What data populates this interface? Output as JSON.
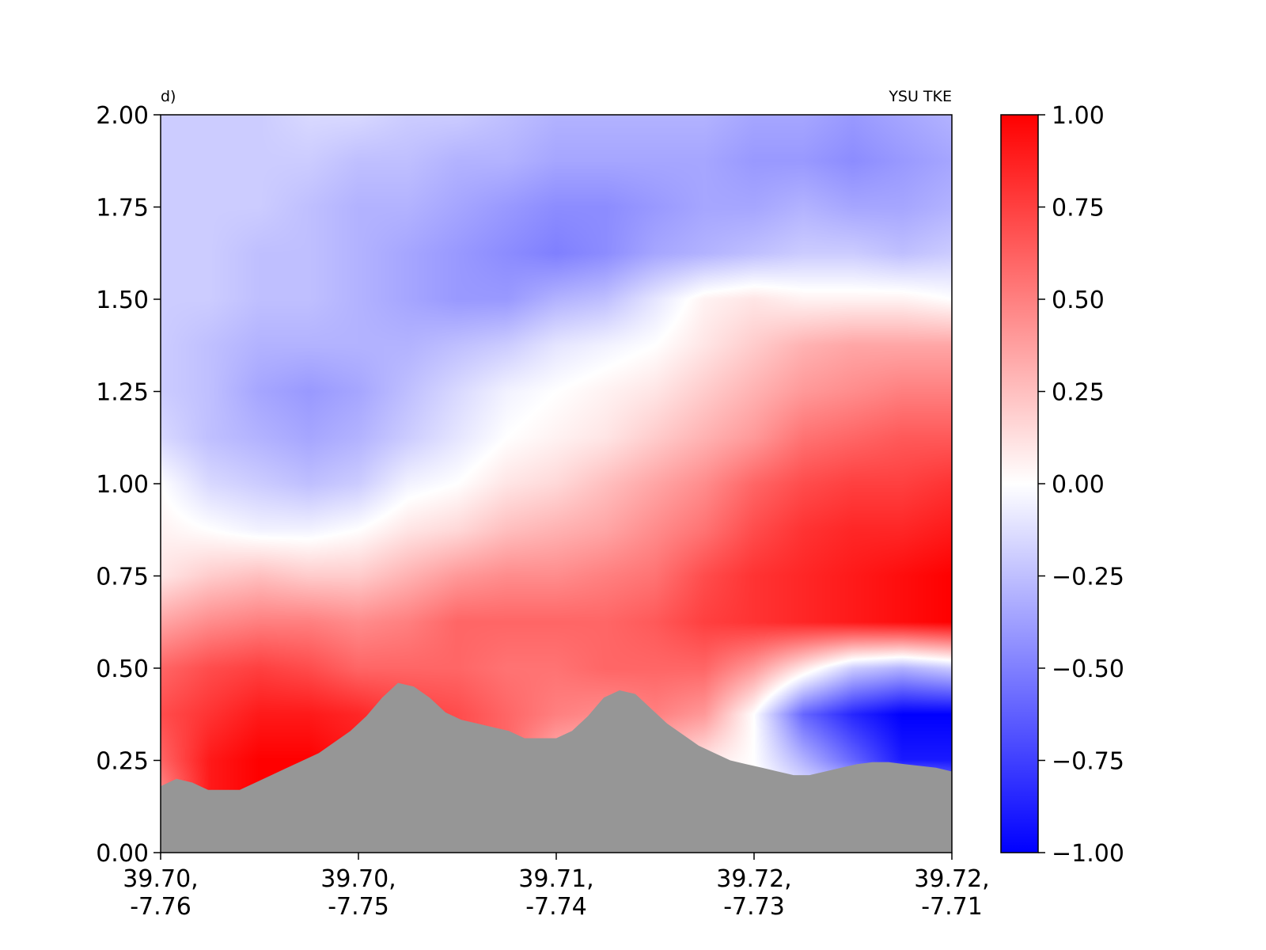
{
  "chart_data": {
    "type": "heatmap",
    "panel_label": "d)",
    "title": "YSU TKE",
    "x_ticks": [
      "39.70,\n-7.76",
      "39.70,\n-7.75",
      "39.71,\n-7.74",
      "39.72,\n-7.73",
      "39.72,\n-7.71"
    ],
    "ylim": [
      0,
      2.0
    ],
    "y_ticks": [
      "0.00",
      "0.25",
      "0.50",
      "0.75",
      "1.00",
      "1.25",
      "1.50",
      "1.75",
      "2.00"
    ],
    "y_tick_values": [
      0,
      0.25,
      0.5,
      0.75,
      1.0,
      1.25,
      1.5,
      1.75,
      2.0
    ],
    "colorbar": {
      "vmin": -1.0,
      "vmax": 1.0,
      "ticks": [
        "1.00",
        "0.75",
        "0.50",
        "0.25",
        "0.00",
        "−0.25",
        "−0.50",
        "−0.75",
        "−1.00"
      ],
      "tick_values": [
        1.0,
        0.75,
        0.5,
        0.25,
        0.0,
        -0.25,
        -0.5,
        -0.75,
        -1.0
      ],
      "colormap": "bwr",
      "colors": {
        "min": "#0000ff",
        "mid": "#ffffff",
        "max": "#ff0000"
      }
    },
    "terrain_color": "#969696",
    "x_positions": [
      0,
      0.0625,
      0.125,
      0.1875,
      0.25,
      0.3125,
      0.375,
      0.4375,
      0.5,
      0.5625,
      0.625,
      0.6875,
      0.75,
      0.8125,
      0.875,
      0.9375,
      1.0
    ],
    "heights": [
      0.0,
      0.125,
      0.25,
      0.375,
      0.5,
      0.625,
      0.75,
      0.875,
      1.0,
      1.125,
      1.25,
      1.375,
      1.5,
      1.625,
      1.75,
      1.875,
      2.0
    ],
    "values": [
      [
        0.5,
        0.9,
        1.0,
        0.95,
        0.9,
        0.8,
        0.75,
        0.7,
        0.5,
        0.4,
        0.3,
        0.2,
        0.1,
        -0.1,
        -0.3,
        0.1,
        0.1
      ],
      [
        0.4,
        0.9,
        1.0,
        1.0,
        0.9,
        0.8,
        0.75,
        0.6,
        0.4,
        0.3,
        0.25,
        0.15,
        0.05,
        0.0,
        0.0,
        0.2,
        -0.2
      ],
      [
        0.6,
        0.9,
        1.0,
        1.0,
        0.9,
        0.8,
        0.7,
        0.6,
        0.3,
        0.2,
        0.25,
        0.1,
        0.0,
        -0.3,
        -0.6,
        -0.9,
        -0.9
      ],
      [
        0.7,
        0.8,
        0.9,
        0.9,
        0.85,
        0.75,
        0.7,
        0.6,
        0.5,
        0.45,
        0.5,
        0.4,
        0.0,
        -0.6,
        -0.85,
        -1.0,
        -1.0
      ],
      [
        0.6,
        0.7,
        0.75,
        0.7,
        0.6,
        0.6,
        0.6,
        0.55,
        0.55,
        0.6,
        0.6,
        0.6,
        0.4,
        0.1,
        -0.2,
        -0.3,
        -0.2
      ],
      [
        0.35,
        0.45,
        0.5,
        0.5,
        0.45,
        0.5,
        0.6,
        0.6,
        0.6,
        0.6,
        0.65,
        0.75,
        0.8,
        0.85,
        0.9,
        0.95,
        1.0
      ],
      [
        0.1,
        0.2,
        0.25,
        0.2,
        0.2,
        0.3,
        0.4,
        0.45,
        0.45,
        0.5,
        0.55,
        0.7,
        0.8,
        0.85,
        0.9,
        0.95,
        1.0
      ],
      [
        0.05,
        0.0,
        -0.05,
        -0.05,
        0.0,
        0.1,
        0.15,
        0.25,
        0.3,
        0.35,
        0.45,
        0.55,
        0.7,
        0.8,
        0.85,
        0.85,
        0.9
      ],
      [
        0.0,
        -0.15,
        -0.2,
        -0.25,
        -0.2,
        -0.05,
        0.0,
        0.1,
        0.15,
        0.25,
        0.35,
        0.45,
        0.6,
        0.7,
        0.75,
        0.75,
        0.8
      ],
      [
        -0.15,
        -0.25,
        -0.3,
        -0.35,
        -0.3,
        -0.2,
        -0.1,
        0.0,
        0.05,
        0.1,
        0.2,
        0.3,
        0.4,
        0.55,
        0.6,
        0.65,
        0.65
      ],
      [
        -0.2,
        -0.25,
        -0.35,
        -0.4,
        -0.35,
        -0.25,
        -0.15,
        -0.05,
        0.0,
        0.05,
        0.1,
        0.2,
        0.3,
        0.4,
        0.45,
        0.5,
        0.5
      ],
      [
        -0.2,
        -0.25,
        -0.3,
        -0.3,
        -0.3,
        -0.3,
        -0.25,
        -0.2,
        -0.1,
        -0.05,
        0.0,
        0.1,
        0.2,
        0.3,
        0.35,
        0.35,
        0.35
      ],
      [
        -0.2,
        -0.2,
        -0.25,
        -0.25,
        -0.3,
        -0.35,
        -0.4,
        -0.4,
        -0.3,
        -0.25,
        -0.1,
        0.05,
        0.1,
        0.05,
        0.05,
        0.05,
        0.0
      ],
      [
        -0.2,
        -0.2,
        -0.25,
        -0.25,
        -0.3,
        -0.35,
        -0.4,
        -0.45,
        -0.5,
        -0.45,
        -0.35,
        -0.3,
        -0.25,
        -0.2,
        -0.2,
        -0.25,
        -0.2
      ],
      [
        -0.2,
        -0.2,
        -0.2,
        -0.25,
        -0.3,
        -0.3,
        -0.35,
        -0.4,
        -0.45,
        -0.45,
        -0.4,
        -0.35,
        -0.35,
        -0.3,
        -0.35,
        -0.35,
        -0.3
      ],
      [
        -0.2,
        -0.2,
        -0.2,
        -0.2,
        -0.25,
        -0.25,
        -0.3,
        -0.3,
        -0.35,
        -0.35,
        -0.35,
        -0.35,
        -0.4,
        -0.4,
        -0.45,
        -0.4,
        -0.35
      ],
      [
        -0.2,
        -0.2,
        -0.2,
        -0.15,
        -0.15,
        -0.2,
        -0.2,
        -0.25,
        -0.3,
        -0.3,
        -0.3,
        -0.3,
        -0.35,
        -0.35,
        -0.4,
        -0.35,
        -0.3
      ]
    ],
    "terrain": [
      [
        0.0,
        0.18
      ],
      [
        0.02,
        0.2
      ],
      [
        0.04,
        0.19
      ],
      [
        0.06,
        0.17
      ],
      [
        0.08,
        0.17
      ],
      [
        0.1,
        0.17
      ],
      [
        0.12,
        0.19
      ],
      [
        0.14,
        0.21
      ],
      [
        0.16,
        0.23
      ],
      [
        0.18,
        0.25
      ],
      [
        0.2,
        0.27
      ],
      [
        0.22,
        0.3
      ],
      [
        0.24,
        0.33
      ],
      [
        0.26,
        0.37
      ],
      [
        0.28,
        0.42
      ],
      [
        0.3,
        0.46
      ],
      [
        0.32,
        0.45
      ],
      [
        0.34,
        0.42
      ],
      [
        0.36,
        0.38
      ],
      [
        0.38,
        0.36
      ],
      [
        0.4,
        0.35
      ],
      [
        0.42,
        0.34
      ],
      [
        0.44,
        0.33
      ],
      [
        0.46,
        0.31
      ],
      [
        0.48,
        0.31
      ],
      [
        0.5,
        0.31
      ],
      [
        0.52,
        0.33
      ],
      [
        0.54,
        0.37
      ],
      [
        0.56,
        0.42
      ],
      [
        0.58,
        0.44
      ],
      [
        0.6,
        0.43
      ],
      [
        0.62,
        0.39
      ],
      [
        0.64,
        0.35
      ],
      [
        0.66,
        0.32
      ],
      [
        0.68,
        0.29
      ],
      [
        0.7,
        0.27
      ],
      [
        0.72,
        0.25
      ],
      [
        0.74,
        0.24
      ],
      [
        0.76,
        0.23
      ],
      [
        0.78,
        0.22
      ],
      [
        0.8,
        0.21
      ],
      [
        0.82,
        0.21
      ],
      [
        0.84,
        0.22
      ],
      [
        0.86,
        0.23
      ],
      [
        0.88,
        0.24
      ],
      [
        0.9,
        0.245
      ],
      [
        0.92,
        0.245
      ],
      [
        0.94,
        0.24
      ],
      [
        0.96,
        0.235
      ],
      [
        0.98,
        0.23
      ],
      [
        1.0,
        0.22
      ]
    ]
  }
}
